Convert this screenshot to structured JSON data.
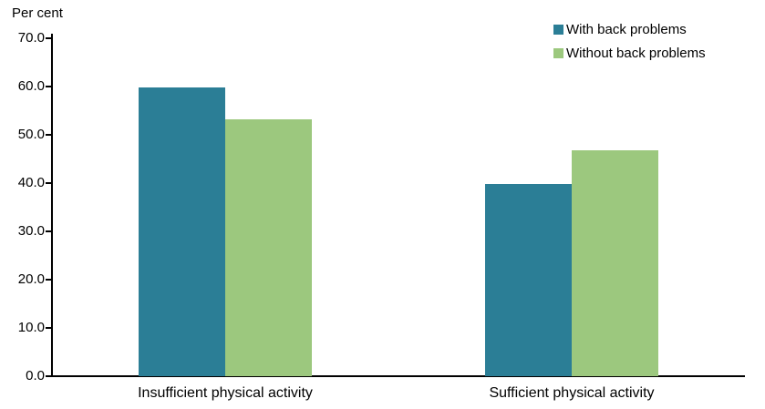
{
  "chart_data": {
    "type": "bar",
    "title": "",
    "ylabel": "Per cent",
    "xlabel": "",
    "categories": [
      "Insufficient physical activity",
      "Sufficient physical activity"
    ],
    "series": [
      {
        "name": "With back problems",
        "color": "#2B7E96",
        "values": [
          59.8,
          39.8
        ]
      },
      {
        "name": "Without back problems",
        "color": "#9CC87E",
        "values": [
          53.2,
          46.8
        ]
      }
    ],
    "ylim": [
      0,
      70
    ],
    "ytick_step": 10,
    "ytick_decimals": 1,
    "grid": false,
    "legend_position": "top-right",
    "axis_color": "#000000",
    "text_color": "#000000"
  }
}
